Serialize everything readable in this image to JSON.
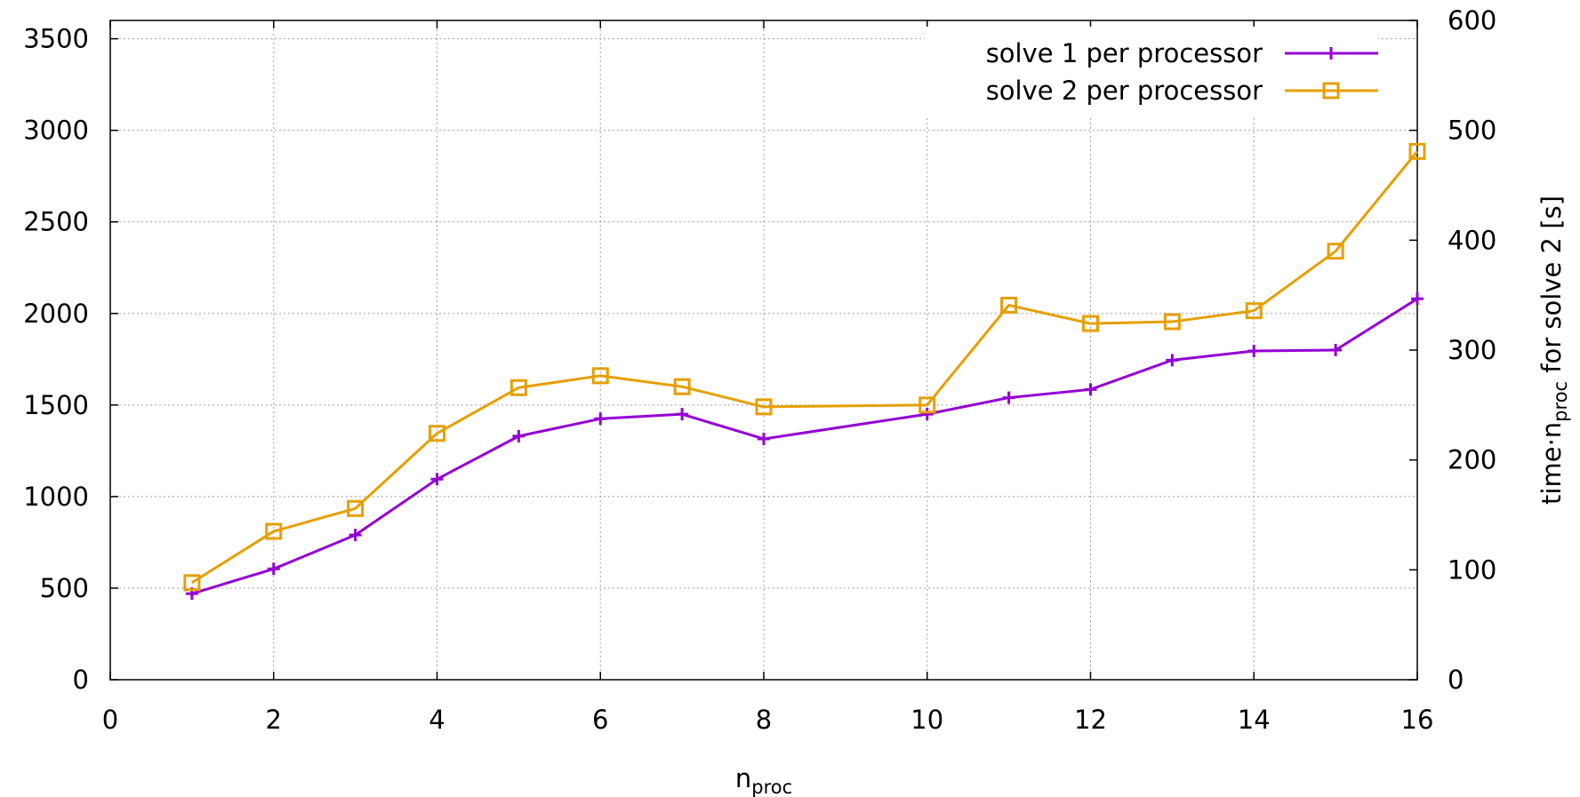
{
  "chart_data": {
    "type": "line",
    "title": "",
    "xlabel": {
      "base": "n",
      "sub": "proc"
    },
    "ylabel": "",
    "y2label": {
      "pre": "time·n",
      "sub": "proc",
      "post": " for solve 2 [s]"
    },
    "xlim": [
      0,
      16
    ],
    "ylim": [
      0,
      3600
    ],
    "y2lim": [
      0,
      600
    ],
    "x_ticks": [
      "0",
      "2",
      "4",
      "6",
      "8",
      "10",
      "12",
      "14",
      "16"
    ],
    "x_tick_values": [
      0,
      2,
      4,
      6,
      8,
      10,
      12,
      14,
      16
    ],
    "y_ticks": [
      "0",
      "500",
      "1000",
      "1500",
      "2000",
      "2500",
      "3000",
      "3500"
    ],
    "y_tick_values": [
      0,
      500,
      1000,
      1500,
      2000,
      2500,
      3000,
      3500
    ],
    "y2_ticks": [
      "0",
      "100",
      "200",
      "300",
      "400",
      "500",
      "600"
    ],
    "y2_tick_values": [
      0,
      100,
      200,
      300,
      400,
      500,
      600
    ],
    "grid": true,
    "legend_position": "top-right",
    "series": [
      {
        "name": "solve 1 per processor",
        "color": "#9400d3",
        "marker": "plus",
        "axis": "left",
        "x": [
          1,
          2,
          3,
          4,
          5,
          6,
          7,
          8,
          10,
          11,
          12,
          13,
          14,
          15,
          16
        ],
        "y": [
          470,
          605,
          790,
          1095,
          1330,
          1425,
          1450,
          1315,
          1450,
          1540,
          1585,
          1745,
          1795,
          1800,
          2080
        ]
      },
      {
        "name": "solve 2 per processor",
        "color": "#e69f00",
        "marker": "square",
        "axis": "left",
        "x": [
          1,
          2,
          3,
          4,
          5,
          6,
          7,
          8,
          10,
          11,
          12,
          13,
          14,
          15,
          16
        ],
        "y": [
          530,
          810,
          935,
          1345,
          1595,
          1660,
          1600,
          1490,
          1500,
          2045,
          1945,
          1955,
          2015,
          2340,
          2885
        ]
      }
    ]
  }
}
